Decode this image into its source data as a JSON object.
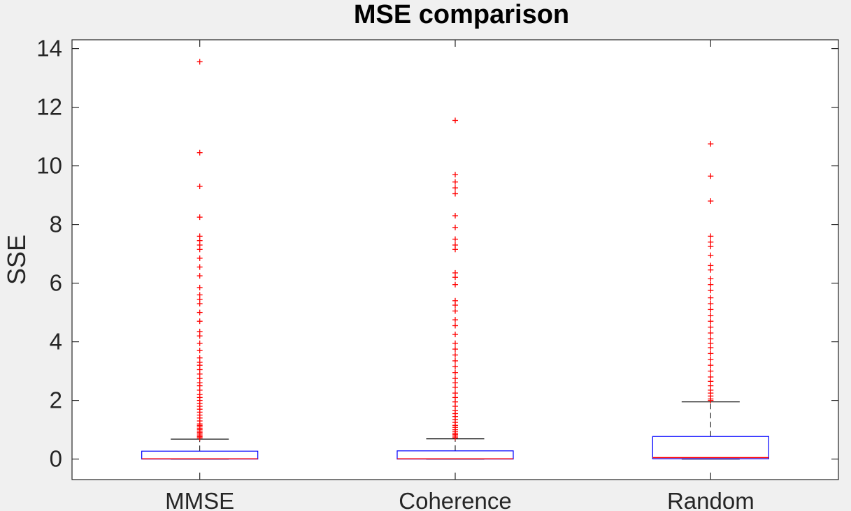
{
  "chart_data": {
    "type": "box",
    "title": "MSE comparison",
    "xlabel": "",
    "ylabel": "SSE",
    "ylim": [
      -0.7,
      14.3
    ],
    "yticks": [
      0,
      2,
      4,
      6,
      8,
      10,
      12,
      14
    ],
    "grid": false,
    "colors": {
      "box": "#0000ff",
      "median": "#ff0000",
      "whisker": "#000000",
      "outlier": "#ff0000"
    },
    "categories": [
      "MMSE",
      "Coherence",
      "Random"
    ],
    "boxes": [
      {
        "name": "MMSE",
        "min": 0,
        "q1": 0,
        "median": 0.01,
        "q3": 0.27,
        "whisker_high": 0.68,
        "outliers": [
          0.72,
          0.76,
          0.8,
          0.85,
          0.9,
          0.95,
          1.0,
          1.05,
          1.1,
          1.15,
          1.2,
          1.3,
          1.4,
          1.5,
          1.6,
          1.7,
          1.8,
          1.9,
          2.0,
          2.1,
          2.2,
          2.35,
          2.5,
          2.6,
          2.75,
          2.9,
          3.05,
          3.2,
          3.3,
          3.45,
          3.7,
          3.95,
          4.2,
          4.35,
          4.7,
          5.0,
          5.3,
          5.45,
          5.6,
          5.85,
          6.25,
          6.55,
          6.85,
          7.15,
          7.3,
          7.45,
          7.6,
          8.25,
          9.3,
          10.45,
          13.55
        ]
      },
      {
        "name": "Coherence",
        "min": 0,
        "q1": 0,
        "median": 0.01,
        "q3": 0.28,
        "whisker_high": 0.69,
        "outliers": [
          0.73,
          0.78,
          0.83,
          0.88,
          0.93,
          1.0,
          1.08,
          1.15,
          1.25,
          1.35,
          1.45,
          1.55,
          1.65,
          1.8,
          1.95,
          2.1,
          2.25,
          2.45,
          2.6,
          2.75,
          2.95,
          3.15,
          3.35,
          3.55,
          3.75,
          3.95,
          4.25,
          4.55,
          4.75,
          5.05,
          5.25,
          5.4,
          5.95,
          6.2,
          6.35,
          7.15,
          7.3,
          7.5,
          7.9,
          8.3,
          9.05,
          9.25,
          9.45,
          9.7,
          11.55
        ]
      },
      {
        "name": "Random",
        "min": 0,
        "q1": 0.01,
        "median": 0.05,
        "q3": 0.77,
        "whisker_high": 1.95,
        "outliers": [
          2.0,
          2.05,
          2.15,
          2.25,
          2.35,
          2.5,
          2.65,
          2.8,
          3.0,
          3.2,
          3.4,
          3.6,
          3.8,
          3.95,
          4.1,
          4.3,
          4.5,
          4.7,
          4.9,
          5.1,
          5.3,
          5.5,
          5.75,
          5.95,
          6.15,
          6.45,
          6.6,
          6.95,
          7.25,
          7.4,
          7.6,
          8.8,
          9.65,
          10.75
        ]
      }
    ]
  }
}
